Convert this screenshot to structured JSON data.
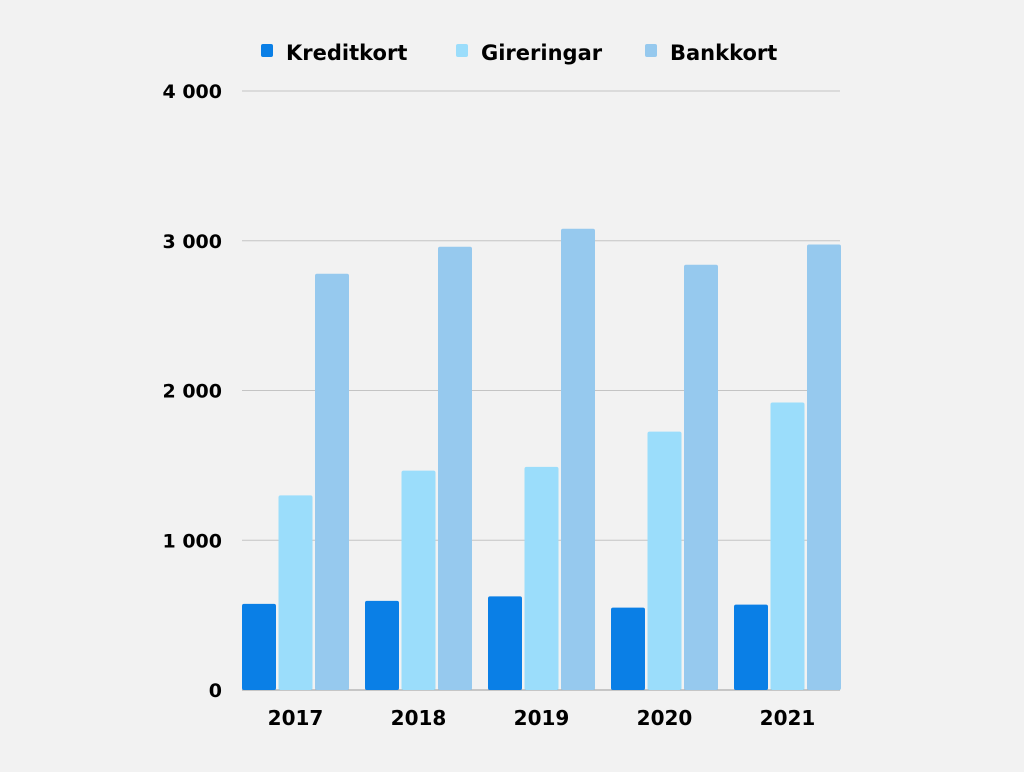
{
  "chart_data": {
    "type": "bar",
    "title": "",
    "xlabel": "",
    "ylabel": "",
    "categories": [
      "2017",
      "2018",
      "2019",
      "2020",
      "2021"
    ],
    "series": [
      {
        "name": "Kreditkort",
        "color": "#0a7fe6",
        "values": [
          575,
          595,
          625,
          550,
          570
        ]
      },
      {
        "name": "Gireringar",
        "color": "#9bddfb",
        "values": [
          1300,
          1465,
          1490,
          1725,
          1920
        ]
      },
      {
        "name": "Bankkort",
        "color": "#96c9ee",
        "values": [
          2780,
          2960,
          3080,
          2840,
          2975
        ]
      }
    ],
    "ylim": [
      0,
      4000
    ],
    "yticks": [
      0,
      1000,
      2000,
      3000,
      4000
    ],
    "ytick_labels": [
      "0",
      "1 000",
      "2 000",
      "3 000",
      "4 000"
    ],
    "grid": true,
    "legend_position": "top"
  }
}
